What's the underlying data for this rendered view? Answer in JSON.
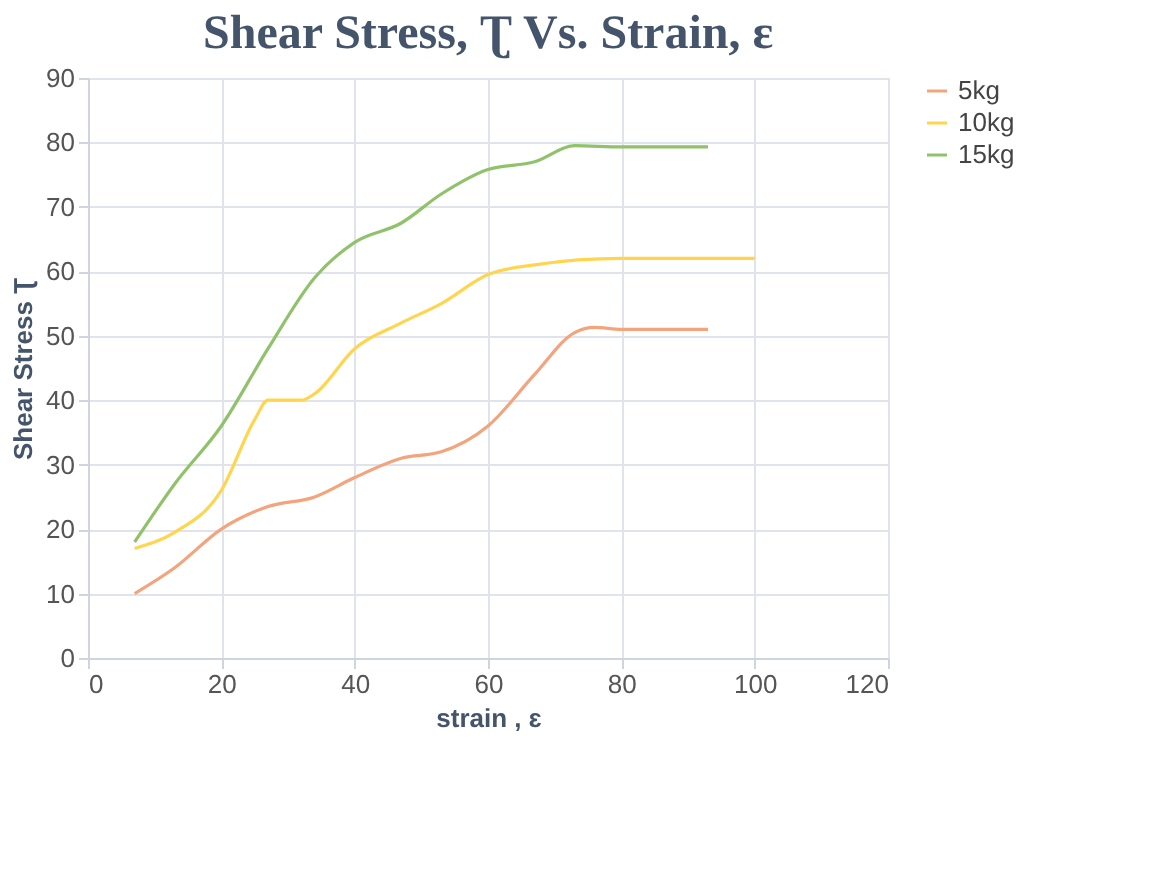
{
  "chart_data": {
    "type": "line",
    "title": "Shear Stress, Ʈ Vs. Strain, ɛ",
    "xlabel": "strain , ɛ",
    "ylabel": "Shear Stress Ʈ",
    "xlim": [
      0,
      120
    ],
    "xticks": [
      0,
      20,
      40,
      60,
      80,
      100,
      120
    ],
    "ylim": [
      0,
      90
    ],
    "yticks": [
      0,
      10,
      20,
      30,
      40,
      50,
      60,
      70,
      80,
      90
    ],
    "grid": true,
    "legend": "right",
    "marker": "none",
    "line_style": "solid",
    "series": [
      {
        "name": "5kg",
        "color": "#f4a47c",
        "x": [
          7,
          13,
          20,
          27,
          34,
          40,
          47,
          53,
          60,
          67,
          73,
          76,
          80,
          93
        ],
        "values": [
          10,
          14,
          20,
          23.5,
          25,
          28,
          31,
          32,
          36,
          44,
          50.5,
          51.3,
          51,
          51
        ]
      },
      {
        "name": "10kg",
        "color": "#ffd54f",
        "x": [
          7,
          13,
          20,
          25,
          27,
          32,
          34,
          40,
          47,
          53,
          60,
          67,
          80,
          100
        ],
        "values": [
          17,
          19.5,
          26,
          37,
          40,
          40,
          41,
          48,
          52,
          55,
          59.5,
          61,
          62,
          62
        ]
      },
      {
        "name": "15kg",
        "color": "#8fc26a",
        "x": [
          7,
          13,
          20,
          27,
          34,
          40,
          47,
          53,
          60,
          67,
          73,
          80,
          93
        ],
        "values": [
          18,
          27,
          36,
          48,
          59,
          64.5,
          67.5,
          72,
          75.8,
          77,
          79.5,
          79.3,
          79.3
        ]
      }
    ]
  }
}
